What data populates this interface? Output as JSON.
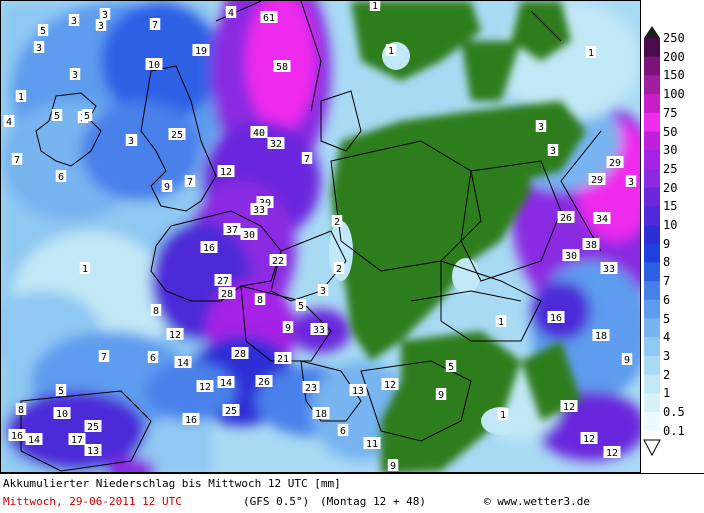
{
  "map": {
    "title": "Akkumulierter Niederschlag bis Mittwoch 12 UTC [mm]",
    "valid_date": "Mittwoch, 29-06-2011",
    "valid_time": "12 UTC",
    "model": "(GFS 0.5°)",
    "run": "(Montag 12 + 48)",
    "copyright_symbol": "©",
    "source": "www.wetter3.de",
    "colors": {
      "no_rain": "#2f7d1e",
      "light": "#b7ecf5",
      "blue_mid": "#5a8de8",
      "blue_dark": "#2a2fd0",
      "purple": "#8a2be2",
      "magenta": "#e43ce8",
      "border": "#000000"
    },
    "legend": {
      "levels": [
        "250",
        "200",
        "150",
        "100",
        "75",
        "50",
        "30",
        "25",
        "20",
        "15",
        "10",
        "9",
        "8",
        "7",
        "6",
        "5",
        "4",
        "3",
        "2",
        "1",
        "0.5",
        "0.1"
      ],
      "colors": [
        "#1f1f1f",
        "#4a0d4a",
        "#7a1478",
        "#a21ea0",
        "#c81ec8",
        "#ee2cee",
        "#c020dc",
        "#a523e6",
        "#8a2be2",
        "#6a27dc",
        "#4e2ad8",
        "#2d2fd6",
        "#1f3ee0",
        "#2e60e6",
        "#4880ea",
        "#5d9cee",
        "#77b4f0",
        "#8fc8f2",
        "#a8daf4",
        "#c1e8f6",
        "#d8f2f8",
        "#eefaff"
      ]
    },
    "labels": [
      {
        "v": "61"
      },
      {
        "v": "3"
      },
      {
        "v": "3"
      },
      {
        "v": "7"
      },
      {
        "v": "1"
      },
      {
        "v": "4"
      },
      {
        "v": "5"
      },
      {
        "v": "3"
      },
      {
        "v": "19"
      },
      {
        "v": "1"
      },
      {
        "v": "1"
      },
      {
        "v": "10"
      },
      {
        "v": "3"
      },
      {
        "v": "58"
      },
      {
        "v": "1"
      },
      {
        "v": "3"
      },
      {
        "v": "4"
      },
      {
        "v": "5"
      },
      {
        "v": "5"
      },
      {
        "v": "6"
      },
      {
        "v": "25"
      },
      {
        "v": "40"
      },
      {
        "v": "3"
      },
      {
        "v": "3"
      },
      {
        "v": "3"
      },
      {
        "v": "32"
      },
      {
        "v": "3"
      },
      {
        "v": "29"
      },
      {
        "v": "7"
      },
      {
        "v": "7"
      },
      {
        "v": "12"
      },
      {
        "v": "6"
      },
      {
        "v": "9"
      },
      {
        "v": "7"
      },
      {
        "v": "29"
      },
      {
        "v": "3"
      },
      {
        "v": "30"
      },
      {
        "v": "33"
      },
      {
        "v": "2"
      },
      {
        "v": "26"
      },
      {
        "v": "34"
      },
      {
        "v": "37"
      },
      {
        "v": "30"
      },
      {
        "v": "16"
      },
      {
        "v": "38"
      },
      {
        "v": "22"
      },
      {
        "v": "30"
      },
      {
        "v": "1"
      },
      {
        "v": "2"
      },
      {
        "v": "33"
      },
      {
        "v": "27"
      },
      {
        "v": "28"
      },
      {
        "v": "3"
      },
      {
        "v": "8"
      },
      {
        "v": "8"
      },
      {
        "v": "5"
      },
      {
        "v": "16"
      },
      {
        "v": "1"
      },
      {
        "v": "9"
      },
      {
        "v": "33"
      },
      {
        "v": "12"
      },
      {
        "v": "18"
      },
      {
        "v": "28"
      },
      {
        "v": "7"
      },
      {
        "v": "6"
      },
      {
        "v": "14"
      },
      {
        "v": "21"
      },
      {
        "v": "5"
      },
      {
        "v": "9"
      },
      {
        "v": "5"
      },
      {
        "v": "12"
      },
      {
        "v": "14"
      },
      {
        "v": "26"
      },
      {
        "v": "23"
      },
      {
        "v": "13"
      },
      {
        "v": "12"
      },
      {
        "v": "9"
      },
      {
        "v": "25"
      },
      {
        "v": "10"
      },
      {
        "v": "16"
      },
      {
        "v": "18"
      },
      {
        "v": "8"
      },
      {
        "v": "25"
      },
      {
        "v": "1"
      },
      {
        "v": "12"
      },
      {
        "v": "16"
      },
      {
        "v": "14"
      },
      {
        "v": "17"
      },
      {
        "v": "6"
      },
      {
        "v": "11"
      },
      {
        "v": "12"
      },
      {
        "v": "13"
      },
      {
        "v": "12"
      },
      {
        "v": "9"
      },
      {
        "v": "18"
      }
    ]
  }
}
